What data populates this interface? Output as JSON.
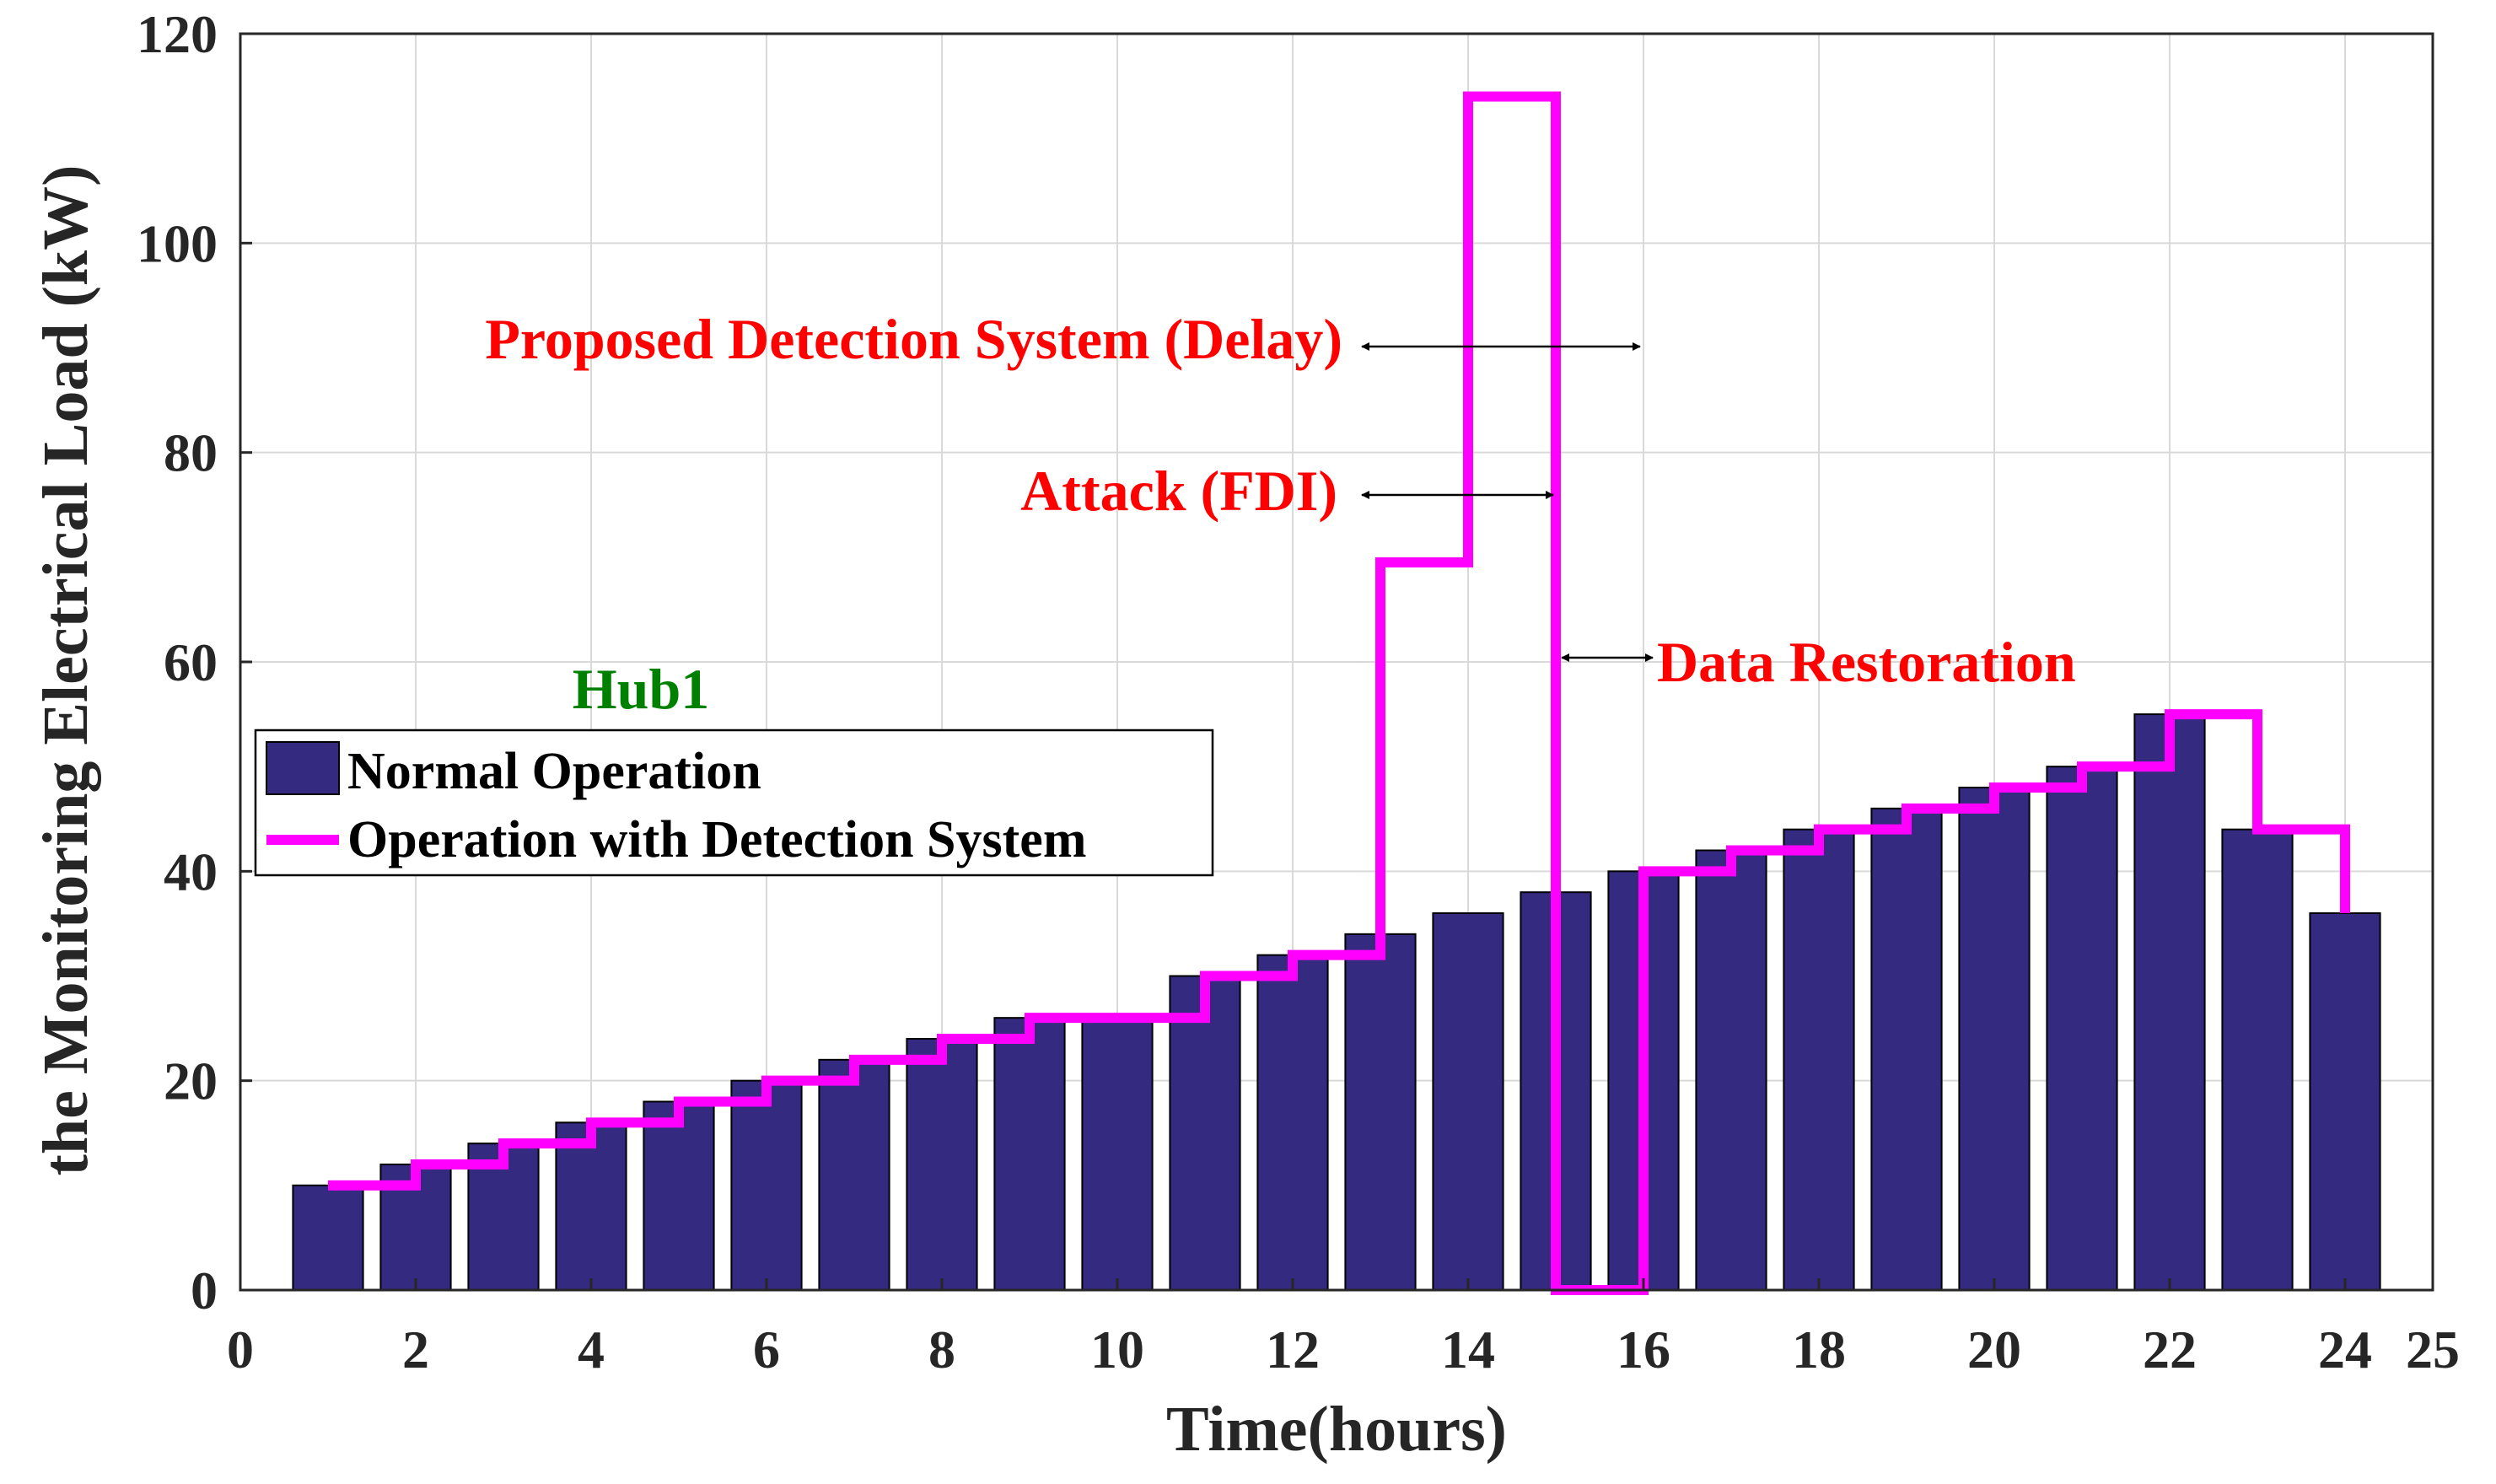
{
  "colors": {
    "bar": "#342b80",
    "line": "#ff00ff",
    "annotation": "#ff0000",
    "hub": "#008000",
    "grid": "#d9d9d9"
  },
  "chart_data": {
    "type": "bar",
    "xlabel": "Time(hours)",
    "ylabel": "the Monitoring Electrical Load (kW)",
    "xlim": [
      0,
      25
    ],
    "ylim": [
      0,
      120
    ],
    "xticks": [
      0,
      2,
      4,
      6,
      8,
      10,
      12,
      14,
      16,
      18,
      20,
      22,
      24,
      25
    ],
    "yticks": [
      0,
      20,
      40,
      60,
      80,
      100,
      120
    ],
    "grid": true,
    "legend_position": "center-left",
    "categories": [
      1,
      2,
      3,
      4,
      5,
      6,
      7,
      8,
      9,
      10,
      11,
      12,
      13,
      14,
      15,
      16,
      17,
      18,
      19,
      20,
      21,
      22,
      23,
      24
    ],
    "series": [
      {
        "name": "Normal Operation",
        "type": "bar",
        "values": [
          10,
          12,
          14,
          16,
          18,
          20,
          22,
          24,
          26,
          26,
          30,
          32,
          34,
          36,
          38,
          40,
          42,
          44,
          46,
          48,
          50,
          55,
          44,
          36
        ]
      },
      {
        "name": "Operation with Detection System",
        "type": "stairs",
        "values": [
          10,
          12,
          14,
          16,
          18,
          20,
          22,
          24,
          26,
          26,
          30,
          32,
          69.5,
          114,
          0,
          40,
          42,
          44,
          46,
          48,
          50,
          55,
          44,
          36
        ]
      }
    ],
    "annotations": {
      "hub": "Hub1",
      "delay": "Proposed Detection System (Delay)",
      "attack": "Attack (FDI)",
      "restoration": "Data Restoration"
    }
  }
}
